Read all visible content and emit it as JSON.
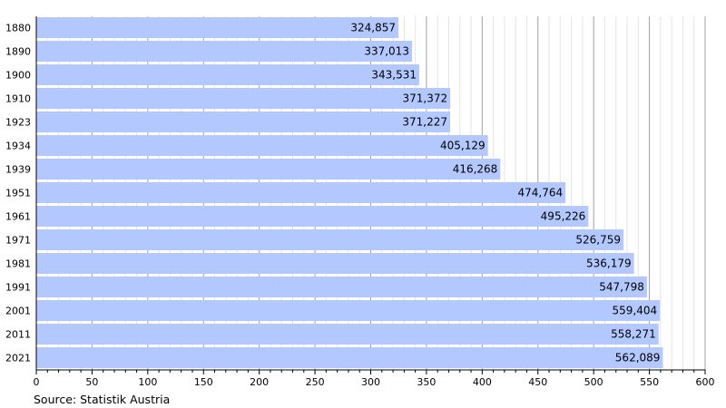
{
  "chart_data": {
    "type": "bar",
    "orientation": "horizontal",
    "categories": [
      "1880",
      "1890",
      "1900",
      "1910",
      "1923",
      "1934",
      "1939",
      "1951",
      "1961",
      "1971",
      "1981",
      "1991",
      "2001",
      "2011",
      "2021"
    ],
    "values": [
      324857,
      337013,
      343531,
      371372,
      371227,
      405129,
      416268,
      474764,
      495226,
      526759,
      536179,
      547798,
      559404,
      558271,
      562089
    ],
    "value_labels": [
      "324,857",
      "337,013",
      "343,531",
      "371,372",
      "371,227",
      "405,129",
      "416,268",
      "474,764",
      "495,226",
      "526,759",
      "536,179",
      "547,798",
      "559,404",
      "558,271",
      "562,089"
    ],
    "xlim": [
      0,
      600
    ],
    "x_unit_divisor": 1000,
    "x_ticks": [
      "0",
      "50",
      "100",
      "150",
      "200",
      "250",
      "300",
      "350",
      "400",
      "450",
      "500",
      "550",
      "600"
    ],
    "grid": true,
    "bar_color": "#b3c8ff",
    "source": "Source: Statistik Austria"
  }
}
